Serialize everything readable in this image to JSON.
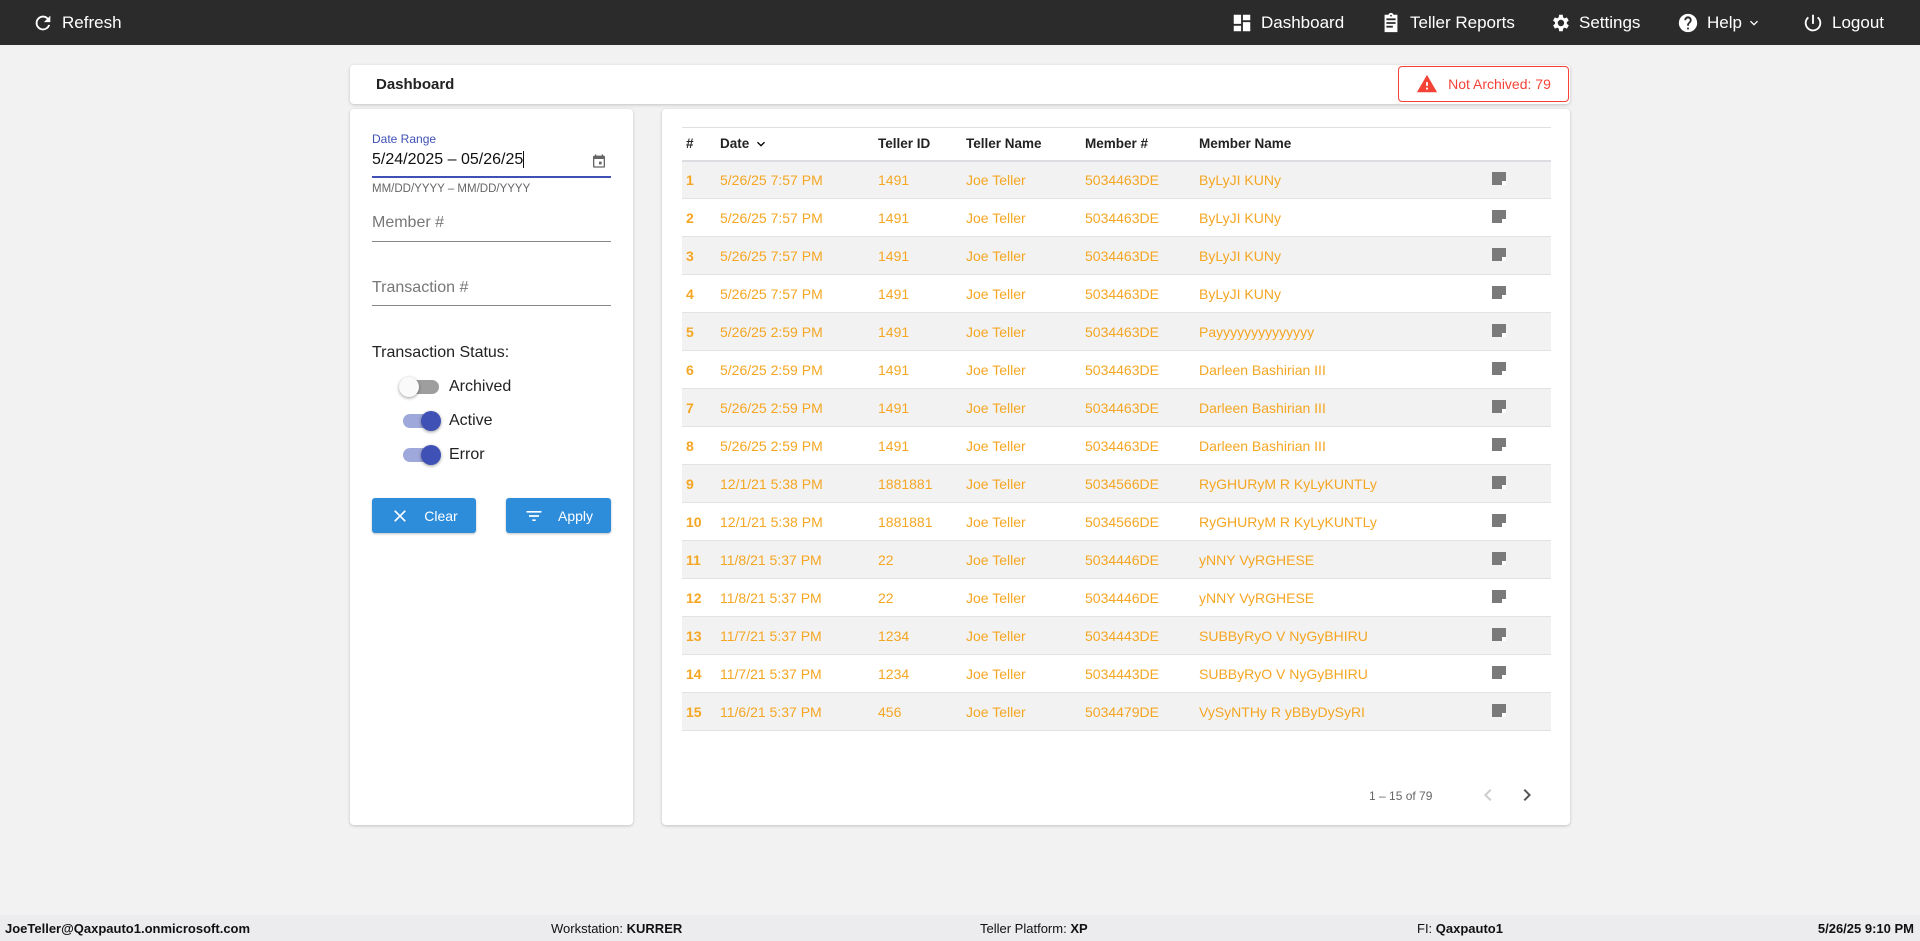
{
  "topbar": {
    "refresh": "Refresh",
    "dashboard": "Dashboard",
    "teller_reports": "Teller Reports",
    "settings": "Settings",
    "help": "Help",
    "logout": "Logout"
  },
  "header": {
    "title": "Dashboard",
    "not_archived": "Not Archived: 79"
  },
  "filters": {
    "date_label": "Date Range",
    "date_value": "5/24/2025 – 05/26/25",
    "date_hint": "MM/DD/YYYY – MM/DD/YYYY",
    "member_placeholder": "Member #",
    "transaction_placeholder": "Transaction #",
    "status_label": "Transaction Status:",
    "toggles": [
      {
        "label": "Archived",
        "on": false
      },
      {
        "label": "Active",
        "on": true
      },
      {
        "label": "Error",
        "on": true
      }
    ],
    "clear": "Clear",
    "apply": "Apply"
  },
  "table": {
    "columns": [
      "#",
      "Date",
      "Teller ID",
      "Teller Name",
      "Member #",
      "Member Name"
    ],
    "rows": [
      [
        "1",
        "5/26/25 7:57 PM",
        "1491",
        "Joe Teller",
        "5034463DE",
        "ByLyJI KUNy"
      ],
      [
        "2",
        "5/26/25 7:57 PM",
        "1491",
        "Joe Teller",
        "5034463DE",
        "ByLyJI KUNy"
      ],
      [
        "3",
        "5/26/25 7:57 PM",
        "1491",
        "Joe Teller",
        "5034463DE",
        "ByLyJI KUNy"
      ],
      [
        "4",
        "5/26/25 7:57 PM",
        "1491",
        "Joe Teller",
        "5034463DE",
        "ByLyJI KUNy"
      ],
      [
        "5",
        "5/26/25 2:59 PM",
        "1491",
        "Joe Teller",
        "5034463DE",
        "Payyyyyyyyyyyyyy"
      ],
      [
        "6",
        "5/26/25 2:59 PM",
        "1491",
        "Joe Teller",
        "5034463DE",
        "Darleen Bashirian III"
      ],
      [
        "7",
        "5/26/25 2:59 PM",
        "1491",
        "Joe Teller",
        "5034463DE",
        "Darleen Bashirian III"
      ],
      [
        "8",
        "5/26/25 2:59 PM",
        "1491",
        "Joe Teller",
        "5034463DE",
        "Darleen Bashirian III"
      ],
      [
        "9",
        "12/1/21 5:38 PM",
        "1881881",
        "Joe Teller",
        "5034566DE",
        "RyGHURyM R KyLyKUNTLy"
      ],
      [
        "10",
        "12/1/21 5:38 PM",
        "1881881",
        "Joe Teller",
        "5034566DE",
        "RyGHURyM R KyLyKUNTLy"
      ],
      [
        "11",
        "11/8/21 5:37 PM",
        "22",
        "Joe Teller",
        "5034446DE",
        "yNNY VyRGHESE"
      ],
      [
        "12",
        "11/8/21 5:37 PM",
        "22",
        "Joe Teller",
        "5034446DE",
        "yNNY VyRGHESE"
      ],
      [
        "13",
        "11/7/21 5:37 PM",
        "1234",
        "Joe Teller",
        "5034443DE",
        "SUBByRyO V NyGyBHIRU"
      ],
      [
        "14",
        "11/7/21 5:37 PM",
        "1234",
        "Joe Teller",
        "5034443DE",
        "SUBByRyO V NyGyBHIRU"
      ],
      [
        "15",
        "11/6/21 5:37 PM",
        "456",
        "Joe Teller",
        "5034479DE",
        "VySyNTHy R yBByDySyRI"
      ]
    ],
    "pagination": "1 – 15 of 79"
  },
  "footer": {
    "user": "JoeTeller@Qaxpauto1.onmicrosoft.com",
    "workstation_label": "Workstation:",
    "workstation": "KURRER",
    "platform_label": "Teller Platform:",
    "platform": "XP",
    "fi_label": "FI:",
    "fi": "Qaxpauto1",
    "datetime": "5/26/25 9:10 PM"
  },
  "colors": {
    "accent": "#3f51b5",
    "button": "#2e8ddb",
    "row_text": "#f5a623",
    "alert": "#f44336"
  }
}
